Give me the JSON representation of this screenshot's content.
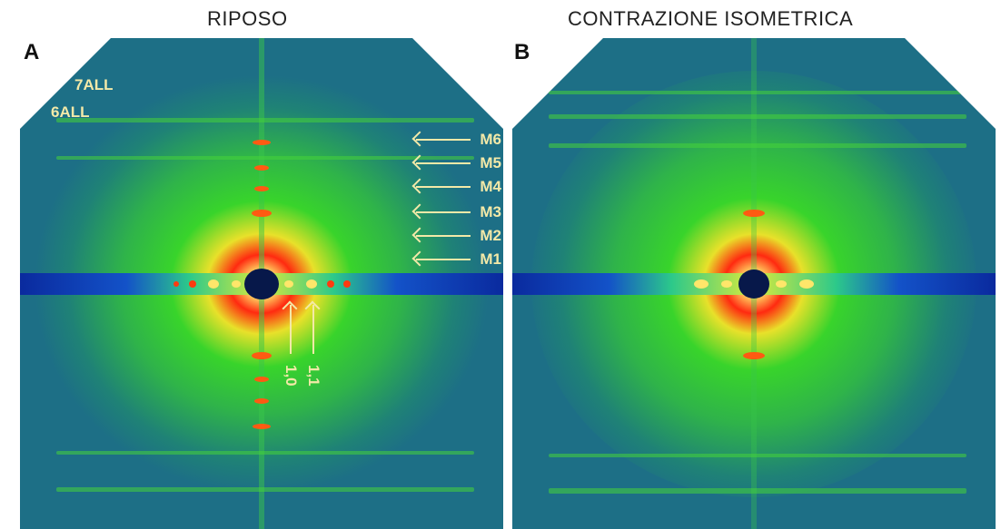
{
  "panel_a": {
    "letter": "A",
    "title": "RIPOSO",
    "layer_lines": [
      "7ALL",
      "6ALL"
    ],
    "meridional_reflections": [
      "M6",
      "M5",
      "M4",
      "M3",
      "M2",
      "M1"
    ],
    "equatorial_reflections": [
      "1,0",
      "1,1"
    ]
  },
  "panel_b": {
    "letter": "B",
    "title": "CONTRAZIONE ISOMETRICA"
  },
  "colors": {
    "background": "#1d6f86",
    "label": "#f3e9a8",
    "equator_band": "#0a2a9e",
    "halo_green": "#38d42b",
    "core_red": "#ff2a10",
    "core_yellow": "#ffe66a"
  }
}
